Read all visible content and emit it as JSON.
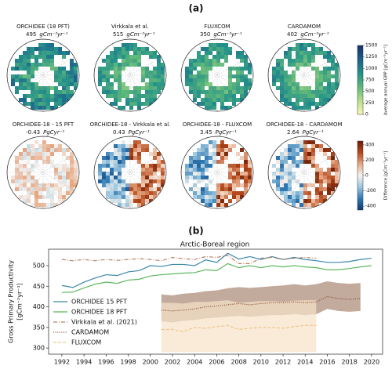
{
  "panel_a": {
    "label": "(a)",
    "maps": [
      {
        "title": "ORCHIDEE (18 PFT)",
        "value": 495,
        "unit": "gCm⁻²yr⁻¹",
        "scale": "gpp"
      },
      {
        "title": "Virkkala et al.",
        "value": 515,
        "unit": "gCm⁻²yr⁻¹",
        "scale": "gpp"
      },
      {
        "title": "FLUXCOM",
        "value": 350,
        "unit": "gCm⁻²yr⁻¹",
        "scale": "gpp"
      },
      {
        "title": "CARDAMOM",
        "value": 402,
        "unit": "gCm⁻²yr⁻¹",
        "scale": "gpp"
      },
      {
        "title": "ORCHIDEE-18 - 15 PFT",
        "value": -0.43,
        "unit": "PgCyr⁻¹",
        "scale": "diff"
      },
      {
        "title": "ORCHIDEE-18 - Virkkala et al.",
        "value": 0.43,
        "unit": "PgCyr⁻¹",
        "scale": "diff"
      },
      {
        "title": "ORCHIDEE-18 - FLUXCOM",
        "value": 3.45,
        "unit": "PgCyr⁻¹",
        "scale": "diff"
      },
      {
        "title": "ORCHIDEE-18 - CARDAMOM",
        "value": 2.64,
        "unit": "PgCyr⁻¹",
        "scale": "diff"
      }
    ],
    "colorbars": [
      {
        "label": "Average annual GPP [gCm⁻²yr⁻¹]",
        "lim": [
          0,
          1500
        ],
        "ticks": [
          0,
          250,
          500,
          750,
          1000,
          1250,
          1500
        ],
        "colors": [
          "#fbf7b5",
          "#b7df8a",
          "#5cb87a",
          "#23918a",
          "#1d5f8a",
          "#14306b"
        ]
      },
      {
        "label": "Difference [gCm⁻²yr⁻¹]",
        "lim": [
          -450,
          450
        ],
        "ticks": [
          -400,
          -200,
          0,
          200,
          400
        ],
        "colors": [
          "#0b3b6e",
          "#2f79b5",
          "#9cc7df",
          "#f5f3f0",
          "#e8a883",
          "#b4481c",
          "#6a1c05"
        ]
      }
    ]
  },
  "chart_data": {
    "type": "line",
    "label": "(b)",
    "title": "Arctic-Boreal region",
    "ylabel": "Gross Primary Productivity",
    "ylabel_unit": "[gCm⁻²yr⁻¹]",
    "xlim": [
      1990.8,
      2021
    ],
    "xticks": [
      1992,
      1994,
      1996,
      1998,
      2000,
      2002,
      2004,
      2006,
      2008,
      2010,
      2012,
      2014,
      2016,
      2018,
      2020
    ],
    "ylim": [
      285,
      540
    ],
    "yticks": [
      300,
      350,
      400,
      450,
      500
    ],
    "legend": "lower left",
    "series": [
      {
        "name": "ORCHIDEE 15 PFT",
        "color": "#3a86a8",
        "dash": "solid",
        "x": [
          1992,
          1993,
          1994,
          1995,
          1996,
          1997,
          1998,
          1999,
          2000,
          2001,
          2002,
          2003,
          2004,
          2005,
          2006,
          2007,
          2008,
          2009,
          2010,
          2011,
          2012,
          2013,
          2014,
          2015,
          2016,
          2017,
          2018,
          2019,
          2020
        ],
        "values": [
          452,
          447,
          460,
          470,
          478,
          476,
          485,
          488,
          500,
          498,
          503,
          503,
          500,
          514,
          508,
          530,
          516,
          522,
          515,
          522,
          515,
          520,
          515,
          512,
          508,
          508,
          510,
          515,
          518
        ]
      },
      {
        "name": "ORCHIDEE 18 PFT",
        "color": "#5cb85c",
        "dash": "solid",
        "x": [
          1992,
          1993,
          1994,
          1995,
          1996,
          1997,
          1998,
          1999,
          2000,
          2001,
          2002,
          2003,
          2004,
          2005,
          2006,
          2007,
          2008,
          2009,
          2010,
          2011,
          2012,
          2013,
          2014,
          2015,
          2016,
          2017,
          2018,
          2019,
          2020
        ],
        "values": [
          435,
          436,
          446,
          455,
          460,
          457,
          465,
          467,
          475,
          478,
          480,
          482,
          483,
          490,
          488,
          505,
          495,
          500,
          495,
          500,
          497,
          500,
          497,
          495,
          490,
          490,
          493,
          497,
          500
        ]
      },
      {
        "name": "Virkkala et al. (2021)",
        "color": "#b8826a",
        "dash": "dashdot",
        "x": [
          1992,
          1993,
          1994,
          1995,
          1996,
          1997,
          1998,
          1999,
          2000,
          2001,
          2002,
          2003,
          2004,
          2005,
          2006,
          2007,
          2008,
          2009,
          2010,
          2011,
          2012,
          2013,
          2014,
          2015
        ],
        "values": [
          515,
          512,
          515,
          512,
          515,
          513,
          515,
          517,
          515,
          512,
          520,
          517,
          515,
          522,
          520,
          525,
          505,
          505,
          518,
          520,
          515,
          518,
          520,
          518
        ]
      },
      {
        "name": "CARDAMOM",
        "color": "#8b4a2b",
        "dash": "dotted",
        "x": [
          2001,
          2002,
          2003,
          2004,
          2005,
          2006,
          2007,
          2008,
          2009,
          2010,
          2011,
          2012,
          2013,
          2014,
          2015,
          2016,
          2017,
          2018,
          2019
        ],
        "values": [
          392,
          390,
          392,
          395,
          400,
          402,
          405,
          408,
          405,
          408,
          410,
          410,
          412,
          410,
          412,
          425,
          420,
          418,
          420
        ],
        "band_lower": [
          365,
          362,
          366,
          368,
          372,
          374,
          376,
          378,
          376,
          378,
          380,
          380,
          382,
          380,
          382,
          395,
          390,
          388,
          390
        ],
        "band_upper": [
          430,
          428,
          432,
          434,
          438,
          440,
          445,
          448,
          446,
          448,
          450,
          452,
          455,
          452,
          455,
          462,
          458,
          456,
          458
        ],
        "band_color": "#a88674"
      },
      {
        "name": "FLUXCOM",
        "color": "#f0c68a",
        "dash": "dashed",
        "x": [
          2001,
          2002,
          2003,
          2004,
          2005,
          2006,
          2007,
          2008,
          2009,
          2010,
          2011,
          2012,
          2013,
          2014,
          2015
        ],
        "values": [
          345,
          345,
          340,
          350,
          348,
          352,
          355,
          345,
          348,
          350,
          350,
          348,
          352,
          355,
          355
        ],
        "band_lower": [
          290,
          290,
          290,
          290,
          290,
          290,
          290,
          290,
          290,
          290,
          290,
          290,
          290,
          290,
          290
        ],
        "band_upper": [
          410,
          410,
          408,
          412,
          412,
          414,
          416,
          410,
          412,
          414,
          414,
          412,
          415,
          416,
          416
        ],
        "band_color": "#f7e3c8"
      }
    ]
  }
}
